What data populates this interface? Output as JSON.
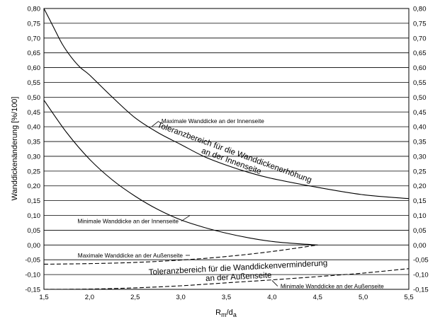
{
  "chart_data": {
    "type": "line",
    "xlabel_main": "R",
    "xlabel_sub1": "m",
    "xlabel_sep": "/d",
    "xlabel_sub2": "a",
    "ylabel": "Wanddickenänderung [%/100]",
    "xlim": [
      1.5,
      5.5
    ],
    "ylim": [
      -0.15,
      0.8
    ],
    "x_ticks": [
      "1,5",
      "2,0",
      "2,5",
      "3,0",
      "3,5",
      "4,0",
      "4,5",
      "5,0",
      "5,5"
    ],
    "y_ticks": [
      "0,80",
      "0,75",
      "0,70",
      "0,65",
      "0,60",
      "0,55",
      "0,50",
      "0,45",
      "0,40",
      "0,35",
      "0,30",
      "0,25",
      "0,20",
      "0,15",
      "0,10",
      "0,05",
      "0,00",
      "-0,05",
      "-0,10",
      "-0,15"
    ],
    "grid": "horizontal",
    "series": [
      {
        "name": "Maximale Wanddicke an der Innenseite",
        "style": "solid",
        "x": [
          1.5,
          1.6,
          1.7,
          1.8,
          1.9,
          2.0,
          2.25,
          2.5,
          2.75,
          3.0,
          3.25,
          3.5,
          3.75,
          4.0,
          4.5,
          5.0,
          5.5
        ],
        "y": [
          0.8,
          0.74,
          0.68,
          0.635,
          0.6,
          0.575,
          0.5,
          0.43,
          0.38,
          0.34,
          0.3,
          0.27,
          0.245,
          0.225,
          0.195,
          0.17,
          0.157
        ]
      },
      {
        "name": "Minimale Wanddicke an der Innenseite",
        "style": "solid",
        "x": [
          1.5,
          1.75,
          2.0,
          2.25,
          2.5,
          2.75,
          3.0,
          3.25,
          3.5,
          3.75,
          4.0,
          4.25,
          4.5
        ],
        "y": [
          0.49,
          0.38,
          0.29,
          0.22,
          0.165,
          0.12,
          0.085,
          0.06,
          0.04,
          0.024,
          0.012,
          0.005,
          0.0
        ]
      },
      {
        "name": "Maximale Wanddicke an der Außenseite",
        "style": "dashed",
        "x": [
          1.5,
          2.0,
          2.5,
          3.0,
          3.5,
          4.0,
          4.5
        ],
        "y": [
          -0.065,
          -0.063,
          -0.059,
          -0.051,
          -0.039,
          -0.022,
          0.0
        ]
      },
      {
        "name": "Minimale Wanddicke an der Außenseite",
        "style": "dashed",
        "x": [
          1.5,
          2.0,
          2.5,
          3.0,
          3.5,
          4.0,
          4.5,
          5.0,
          5.5
        ],
        "y": [
          -0.15,
          -0.149,
          -0.145,
          -0.138,
          -0.128,
          -0.118,
          -0.107,
          -0.095,
          -0.08
        ]
      }
    ],
    "annotations": [
      {
        "text": "Maximale Wanddicke an der Innenseite",
        "at": [
          2.68,
          0.4
        ]
      },
      {
        "text": "Minimale Wanddicke an der Innenseite",
        "at": [
          3.1,
          0.1
        ]
      },
      {
        "text": "Maximale Wanddicke an der Außenseite",
        "at": [
          3.1,
          -0.035
        ]
      },
      {
        "text": "Minimale Wanddicke an der Außenseite",
        "at": [
          4.0,
          -0.12
        ]
      }
    ],
    "region_labels": [
      {
        "lines": [
          "Toleranzbereich für die Wanddickenerhöhung",
          "an der Innenseite"
        ],
        "rotation_deg": 20
      },
      {
        "lines": [
          "Toleranzbereich für die Wanddickenverminderung",
          "an der Außenseite"
        ],
        "rotation_deg": -3
      }
    ]
  }
}
